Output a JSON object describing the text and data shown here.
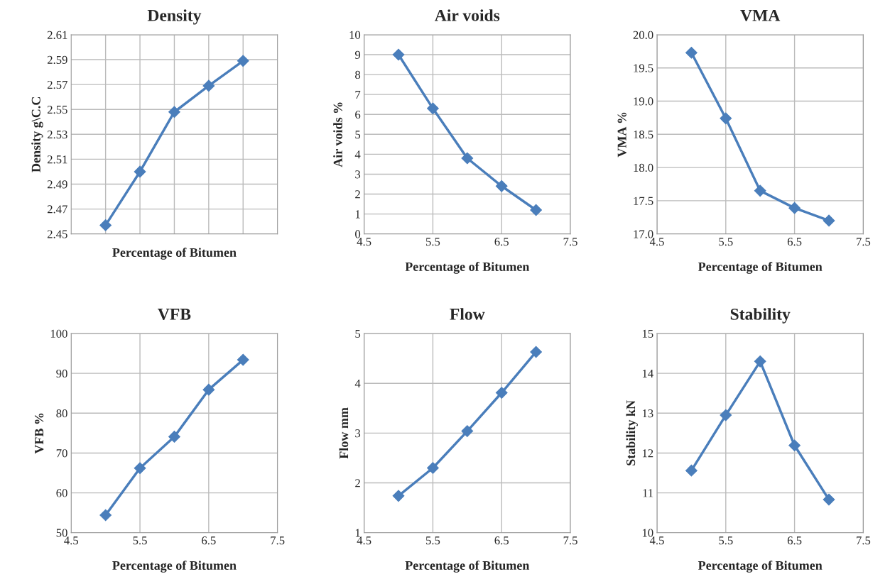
{
  "chart_data": [
    {
      "type": "line",
      "title": "Density",
      "xlabel": "Percentage of Bitumen",
      "ylabel": "Density g\\C.C",
      "categories": [
        null,
        null,
        null,
        null,
        null
      ],
      "values": [
        2.457,
        2.5,
        2.548,
        2.569,
        2.589
      ],
      "color": "#4a7ebb",
      "ylim": [
        2.45,
        2.61
      ],
      "yticks": [
        2.45,
        2.47,
        2.49,
        2.51,
        2.53,
        2.55,
        2.57,
        2.59,
        2.61
      ],
      "tick_labels": "y",
      "grid": true,
      "marker": "diamond",
      "line_style": "solid"
    },
    {
      "type": "line",
      "title": "Air voids",
      "xlabel": "Percentage of Bitumen",
      "ylabel": "Air voids %",
      "x": [
        5.0,
        5.5,
        6.0,
        6.5,
        7.0
      ],
      "values": [
        9.0,
        6.3,
        3.8,
        2.4,
        1.2
      ],
      "color": "#4a7ebb",
      "xlim": [
        4.5,
        7.5
      ],
      "xticks": [
        4.5,
        5.5,
        6.5,
        7.5
      ],
      "ylim": [
        0,
        10
      ],
      "yticks": [
        0,
        1,
        2,
        3,
        4,
        5,
        6,
        7,
        8,
        9,
        10
      ],
      "grid": true,
      "marker": "diamond",
      "line_style": "solid"
    },
    {
      "type": "line",
      "title": "VMA",
      "xlabel": "Percentage of Bitumen",
      "ylabel": "VMA %",
      "x": [
        5.0,
        5.5,
        6.0,
        6.5,
        7.0
      ],
      "values": [
        19.73,
        18.74,
        17.65,
        17.39,
        17.2
      ],
      "color": "#4a7ebb",
      "xlim": [
        4.5,
        7.5
      ],
      "xticks": [
        4.5,
        5.5,
        6.5,
        7.5
      ],
      "ylim": [
        17,
        20
      ],
      "yticks": [
        {
          "value": 17,
          "label": "17.0"
        },
        17.5,
        {
          "value": 18,
          "label": "18.0"
        },
        18.5,
        {
          "value": 19,
          "label": "19.0"
        },
        19.5,
        {
          "value": 20,
          "label": "20.0"
        }
      ],
      "grid": true,
      "marker": "diamond",
      "line_style": "solid"
    },
    {
      "type": "line",
      "title": "VFB",
      "xlabel": "Percentage of Bitumen",
      "ylabel": "VFB %",
      "x": [
        5.0,
        5.5,
        6.0,
        6.5,
        7.0
      ],
      "values": [
        54.4,
        66.2,
        74.1,
        85.9,
        93.4
      ],
      "color": "#4a7ebb",
      "xlim": [
        4.5,
        7.5
      ],
      "xticks": [
        4.5,
        5.5,
        6.5,
        7.5
      ],
      "ylim": [
        50,
        100
      ],
      "yticks": [
        50,
        60,
        70,
        80,
        90,
        100
      ],
      "grid": true,
      "marker": "diamond",
      "line_style": "solid"
    },
    {
      "type": "line",
      "title": "Flow",
      "xlabel": "Percentage of Bitumen",
      "ylabel": "Flow mm",
      "x": [
        5.0,
        5.5,
        6.0,
        6.5,
        7.0
      ],
      "values": [
        1.74,
        2.3,
        3.04,
        3.81,
        4.63
      ],
      "color": "#4a7ebb",
      "xlim": [
        4.5,
        7.5
      ],
      "xticks": [
        4.5,
        5.5,
        6.5,
        7.5
      ],
      "ylim": [
        1,
        5
      ],
      "yticks": [
        1,
        2,
        3,
        4,
        5
      ],
      "grid": true,
      "marker": "diamond",
      "line_style": "solid"
    },
    {
      "type": "line",
      "title": "Stability",
      "xlabel": "Percentage of Bitumen",
      "ylabel": "Stability kN",
      "x": [
        5.0,
        5.5,
        6.0,
        6.5,
        7.0
      ],
      "values": [
        11.56,
        12.95,
        14.3,
        12.19,
        10.83
      ],
      "color": "#4a7ebb",
      "xlim": [
        4.5,
        7.5
      ],
      "xticks": [
        4.5,
        5.5,
        6.5,
        7.5
      ],
      "ylim": [
        10,
        15
      ],
      "yticks": [
        10,
        11,
        12,
        13,
        14,
        15
      ],
      "grid": true,
      "marker": "diamond",
      "line_style": "solid"
    }
  ]
}
